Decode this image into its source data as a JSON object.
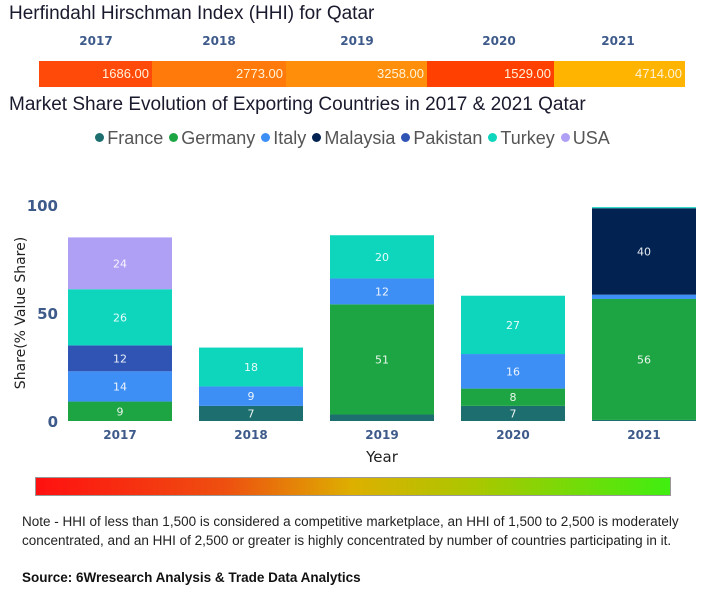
{
  "hhi": {
    "title": "Herfindahl Hirschman Index (HHI) for Qatar",
    "years": [
      "2017",
      "2018",
      "2019",
      "2020",
      "2021"
    ],
    "values": [
      "1686.00",
      "2773.00",
      "3258.00",
      "1529.00",
      "4714.00"
    ],
    "colors": [
      "#ff4a0a",
      "#ff7a0a",
      "#ff8e0a",
      "#ff4000",
      "#ffb400"
    ]
  },
  "chart_data": {
    "type": "bar",
    "stacked": true,
    "title": "Market Share Evolution of Exporting Countries in 2017 & 2021 Qatar",
    "xlabel": "Year",
    "ylabel": "Share(% Value Share)",
    "ylim": [
      0,
      100
    ],
    "yticks": [
      "0",
      "50",
      "100"
    ],
    "categories": [
      "2017",
      "2018",
      "2019",
      "2020",
      "2021"
    ],
    "legend_position": "top-center",
    "series": [
      {
        "name": "France",
        "color": "#1d6f6f",
        "values": [
          0,
          7,
          3,
          7,
          0.5
        ],
        "labels": [
          "",
          "7",
          "",
          "7",
          ""
        ]
      },
      {
        "name": "Germany",
        "color": "#1ea543",
        "values": [
          9,
          0,
          51,
          8,
          56
        ],
        "labels": [
          "9",
          "",
          "51",
          "8",
          "56"
        ]
      },
      {
        "name": "Italy",
        "color": "#3d8ef5",
        "values": [
          14,
          9,
          12,
          16,
          2
        ],
        "labels": [
          "14",
          "9",
          "12",
          "16",
          ""
        ]
      },
      {
        "name": "Malaysia",
        "color": "#022352",
        "values": [
          0,
          0,
          0,
          0,
          40
        ],
        "labels": [
          "",
          "",
          "",
          "",
          "40"
        ]
      },
      {
        "name": "Pakistan",
        "color": "#2f54b4",
        "values": [
          12,
          0,
          0,
          0,
          0
        ],
        "labels": [
          "12",
          "",
          "",
          "",
          ""
        ]
      },
      {
        "name": "Turkey",
        "color": "#0dd6bd",
        "values": [
          26,
          18,
          20,
          27,
          0.5
        ],
        "labels": [
          "26",
          "18",
          "20",
          "27",
          ""
        ]
      },
      {
        "name": "USA",
        "color": "#b0a0f5",
        "values": [
          24,
          0,
          0,
          0,
          0
        ],
        "labels": [
          "24",
          "",
          "",
          "",
          ""
        ]
      }
    ]
  },
  "scale_bar": {
    "from_color": "#ff1010",
    "to_color": "#40ee10"
  },
  "note": "Note - HHI of less than 1,500 is considered a competitive marketplace, an HHI of 1,500 to 2,500 is moderately concentrated, and an HHI of 2,500 or greater is highly concentrated by number of countries participating in it.",
  "source": "Source: 6Wresearch Analysis & Trade Data Analytics"
}
